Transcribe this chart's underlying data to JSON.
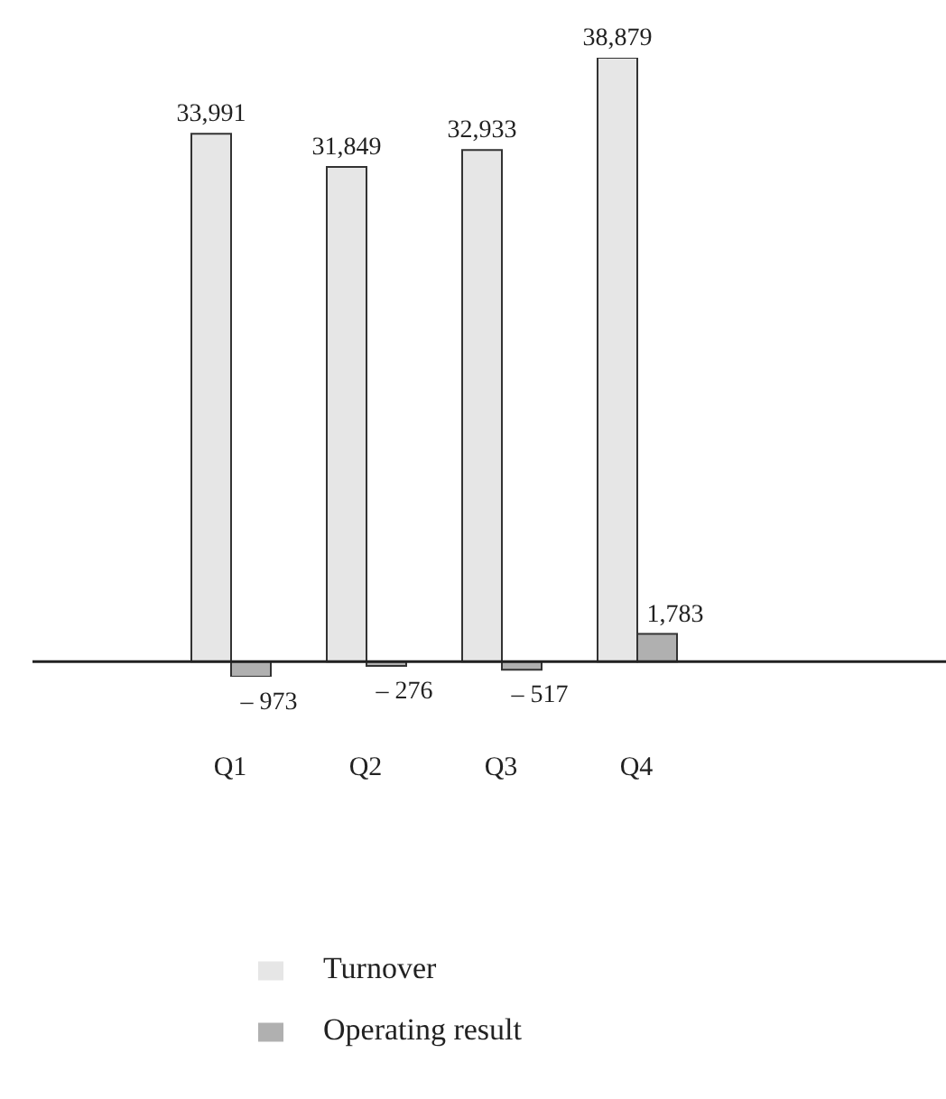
{
  "chart_data": {
    "type": "bar",
    "categories": [
      "Q1",
      "Q2",
      "Q3",
      "Q4"
    ],
    "series": [
      {
        "name": "Turnover",
        "color": "#e6e6e6",
        "values": [
          33991,
          31849,
          32933,
          38879
        ],
        "value_labels": [
          "33,991",
          "31,849",
          "32,933",
          "38,879"
        ]
      },
      {
        "name": "Operating result",
        "color": "#b0b0b0",
        "values": [
          -973,
          -276,
          -517,
          1783
        ],
        "value_labels": [
          "– 973",
          "– 276",
          "– 517",
          "1,783"
        ]
      }
    ],
    "legend": "bottom",
    "grid": false
  }
}
